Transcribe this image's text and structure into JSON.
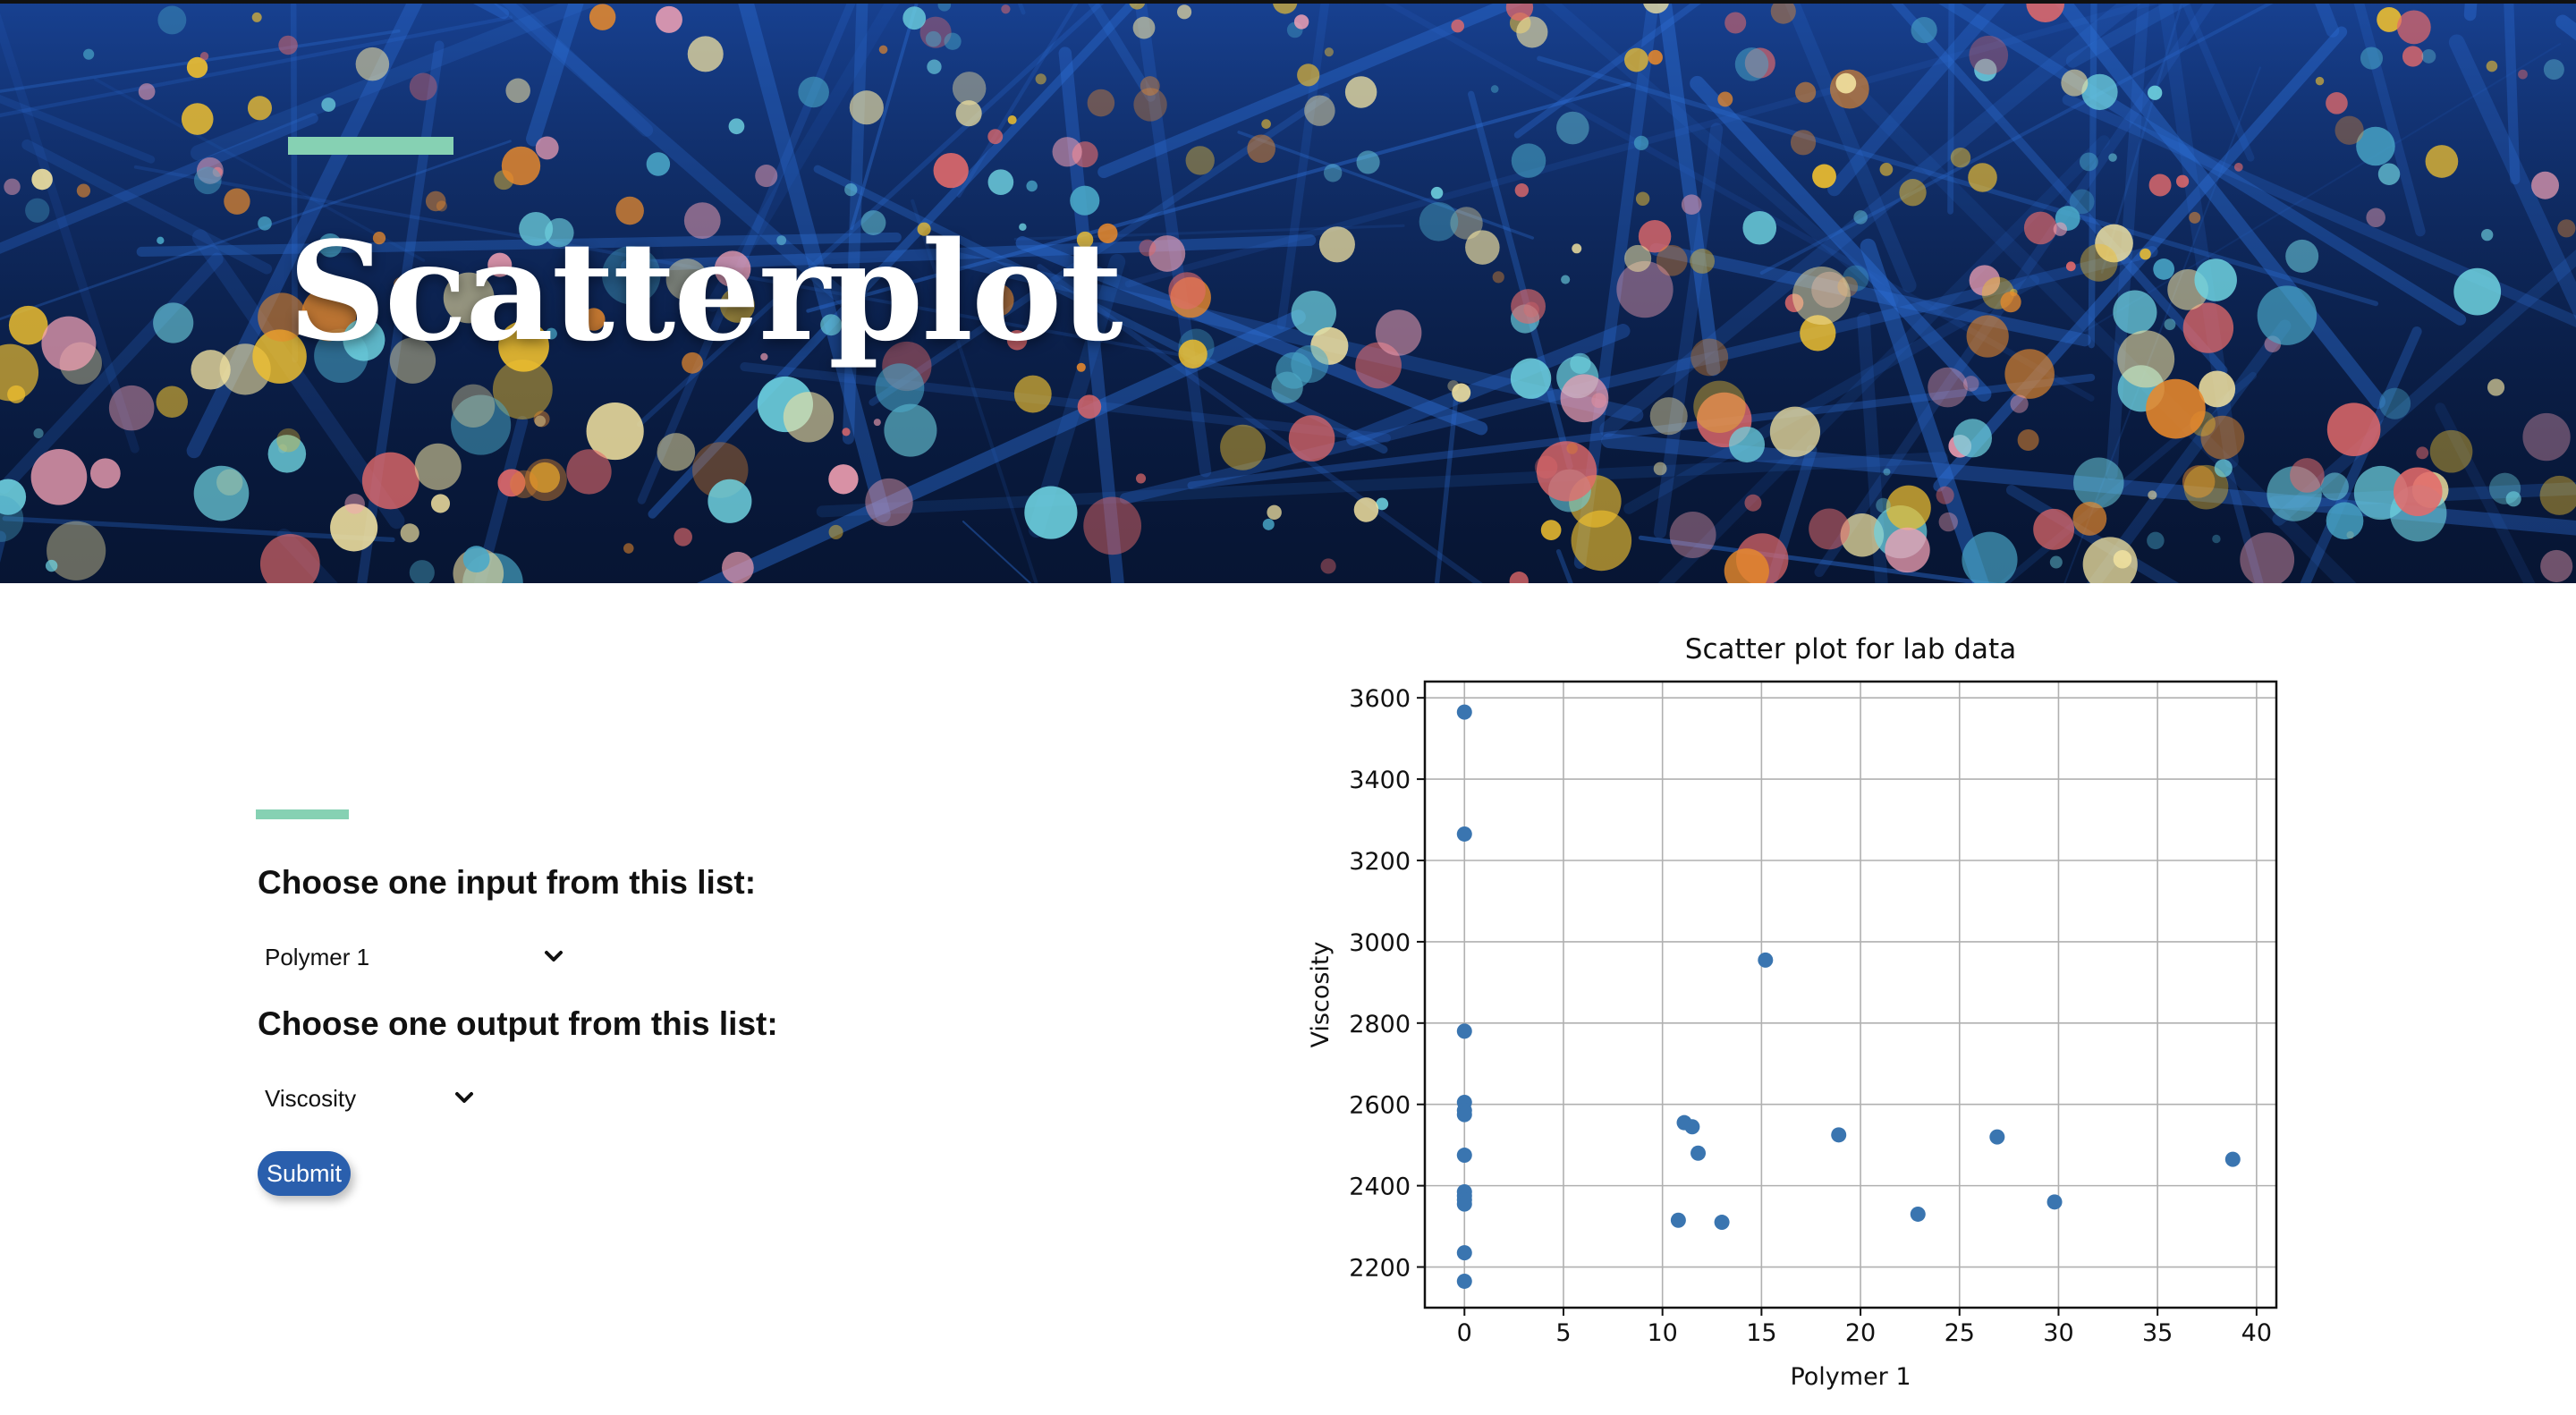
{
  "hero": {
    "title": "Scatterplot",
    "background_colors": {
      "base": "#071634",
      "line": "#2d6fd6",
      "dot_colors": [
        "#f2c12e",
        "#e8892b",
        "#6fd3e0",
        "#4aa8c8",
        "#e46a6a",
        "#f7a3b5",
        "#f3e3a0"
      ]
    },
    "accent_color": "#86d1b3"
  },
  "form": {
    "accent_color": "#86d1b3",
    "input_label": "Choose one input from this list:",
    "input_selected": "Polymer 1",
    "output_label": "Choose one output from this list:",
    "output_selected": "Viscosity",
    "dropdown_icon": "chevron-down-icon",
    "submit_label": "Submit",
    "submit_color": "#2a5fad"
  },
  "chart_data": {
    "type": "scatter",
    "title": "Scatter plot for lab data",
    "xlabel": "Polymer 1",
    "ylabel": "Viscosity",
    "xlim": [
      -2,
      41
    ],
    "ylim": [
      2100,
      3640
    ],
    "xticks": [
      0,
      5,
      10,
      15,
      20,
      25,
      30,
      35,
      40
    ],
    "yticks": [
      2200,
      2400,
      2600,
      2800,
      3000,
      3200,
      3400,
      3600
    ],
    "grid": true,
    "point_color": "#3a75b0",
    "points": [
      {
        "x": 0,
        "y": 3565
      },
      {
        "x": 0,
        "y": 3265
      },
      {
        "x": 0,
        "y": 2780
      },
      {
        "x": 0,
        "y": 2605
      },
      {
        "x": 0,
        "y": 2585
      },
      {
        "x": 0,
        "y": 2575
      },
      {
        "x": 0,
        "y": 2475
      },
      {
        "x": 0,
        "y": 2385
      },
      {
        "x": 0,
        "y": 2375
      },
      {
        "x": 0,
        "y": 2365
      },
      {
        "x": 0,
        "y": 2355
      },
      {
        "x": 0,
        "y": 2235
      },
      {
        "x": 0,
        "y": 2165
      },
      {
        "x": 10.8,
        "y": 2315
      },
      {
        "x": 11.1,
        "y": 2555
      },
      {
        "x": 11.5,
        "y": 2545
      },
      {
        "x": 11.8,
        "y": 2480
      },
      {
        "x": 13.0,
        "y": 2310
      },
      {
        "x": 15.2,
        "y": 2955
      },
      {
        "x": 18.9,
        "y": 2525
      },
      {
        "x": 22.9,
        "y": 2330
      },
      {
        "x": 26.9,
        "y": 2520
      },
      {
        "x": 29.8,
        "y": 2360
      },
      {
        "x": 38.8,
        "y": 2465
      }
    ]
  }
}
